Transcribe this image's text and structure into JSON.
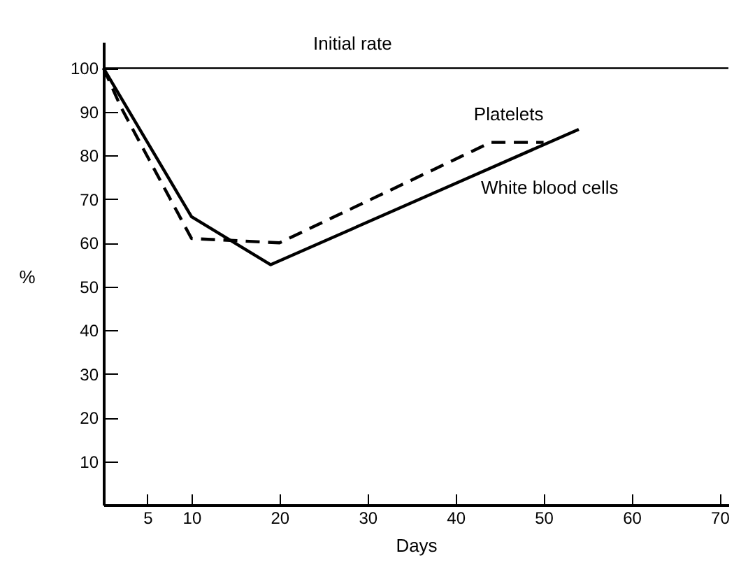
{
  "chart_data": {
    "type": "line",
    "xlabel": "Days",
    "ylabel": "%",
    "xlim": [
      0,
      71
    ],
    "ylim": [
      0,
      106
    ],
    "xticks": [
      5,
      10,
      20,
      30,
      40,
      50,
      60,
      70
    ],
    "yticks": [
      10,
      20,
      30,
      40,
      50,
      60,
      70,
      80,
      90,
      100
    ],
    "ref_lines": [
      {
        "axis": "y",
        "value": 100,
        "label": "Initial rate"
      }
    ],
    "series": [
      {
        "name": "Platelets",
        "color": "#000000",
        "line_style": "dashed",
        "x": [
          0,
          2,
          10,
          20,
          44,
          50
        ],
        "values": [
          100,
          91,
          61,
          60,
          83,
          83
        ]
      },
      {
        "name": "White blood cells",
        "color": "#000000",
        "line_style": "solid",
        "x": [
          0,
          10,
          19,
          54
        ],
        "values": [
          100,
          66,
          55,
          86
        ]
      }
    ]
  }
}
